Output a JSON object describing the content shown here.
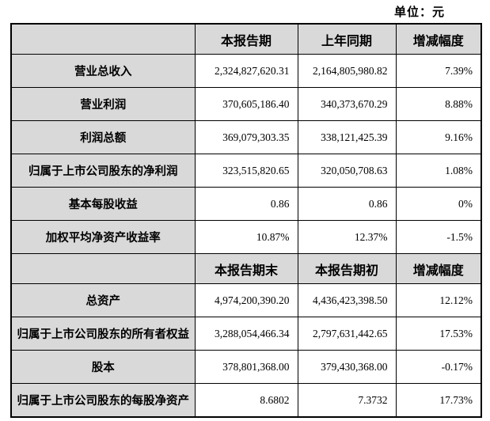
{
  "unit_label": "单位：元",
  "colors": {
    "header_bg": "#d9d9d9",
    "border": "#000000",
    "cell_bg": "#ffffff",
    "text": "#000000"
  },
  "table": {
    "section1": {
      "headers": [
        "",
        "本报告期",
        "上年同期",
        "增减幅度"
      ],
      "rows": [
        {
          "label": "营业总收入",
          "current": "2,324,827,620.31",
          "prior": "2,164,805,980.82",
          "change": "7.39%"
        },
        {
          "label": "营业利润",
          "current": "370,605,186.40",
          "prior": "340,373,670.29",
          "change": "8.88%"
        },
        {
          "label": "利润总额",
          "current": "369,079,303.35",
          "prior": "338,121,425.39",
          "change": "9.16%"
        },
        {
          "label": "归属于上市公司股东的净利润",
          "current": "323,515,820.65",
          "prior": "320,050,708.63",
          "change": "1.08%"
        },
        {
          "label": "基本每股收益",
          "current": "0.86",
          "prior": "0.86",
          "change": "0%"
        },
        {
          "label": "加权平均净资产收益率",
          "current": "10.87%",
          "prior": "12.37%",
          "change": "-1.5%"
        }
      ]
    },
    "section2": {
      "headers": [
        "",
        "本报告期末",
        "本报告期初",
        "增减幅度"
      ],
      "rows": [
        {
          "label": "总资产",
          "current": "4,974,200,390.20",
          "prior": "4,436,423,398.50",
          "change": "12.12%"
        },
        {
          "label": "归属于上市公司股东的所有者权益",
          "current": "3,288,054,466.34",
          "prior": "2,797,631,442.65",
          "change": "17.53%"
        },
        {
          "label": "股本",
          "current": "378,801,368.00",
          "prior": "379,430,368.00",
          "change": "-0.17%"
        },
        {
          "label": "归属于上市公司股东的每股净资产",
          "current": "8.6802",
          "prior": "7.3732",
          "change": "17.73%"
        }
      ]
    }
  }
}
